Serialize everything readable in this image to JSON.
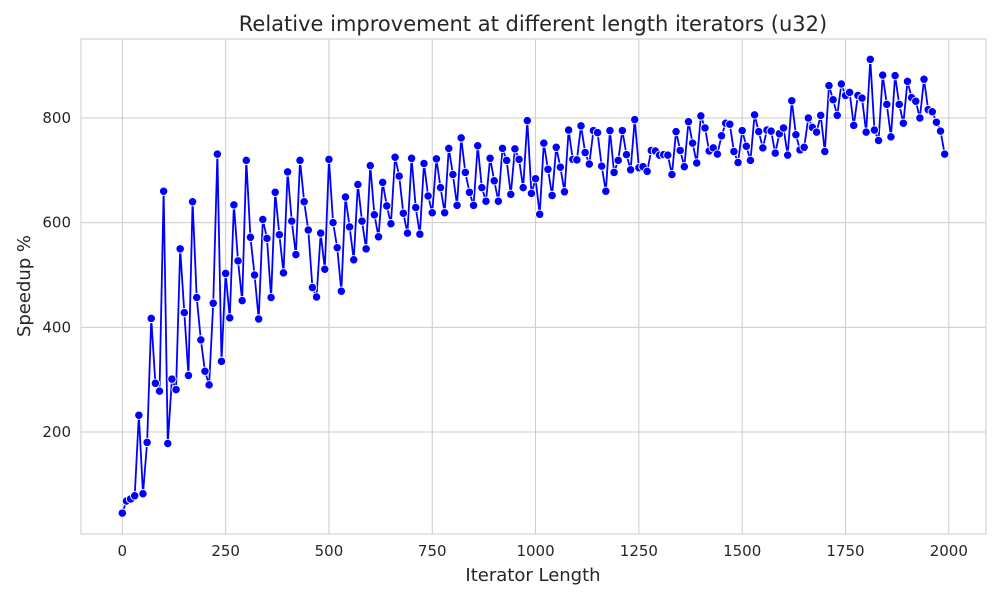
{
  "chart_data": {
    "type": "line",
    "title": "Relative improvement at different length iterators (u32)",
    "xlabel": "Iterator Length",
    "ylabel": "Speedup %",
    "xlim": [
      -100,
      2090
    ],
    "ylim": [
      5,
      951
    ],
    "xticks": [
      0,
      250,
      500,
      750,
      1000,
      1250,
      1500,
      1750,
      2000
    ],
    "yticks": [
      200,
      400,
      600,
      800
    ],
    "grid": true,
    "background": "#ffffff",
    "grid_color": "#cccccc",
    "series": [
      {
        "color": "#0000ff",
        "marker": "circle",
        "x": [
          0,
          10,
          20,
          30,
          40,
          50,
          60,
          70,
          80,
          90,
          100,
          110,
          120,
          130,
          140,
          150,
          160,
          170,
          180,
          190,
          200,
          210,
          220,
          230,
          240,
          250,
          260,
          270,
          280,
          290,
          300,
          310,
          320,
          330,
          340,
          350,
          360,
          370,
          380,
          390,
          400,
          410,
          420,
          430,
          440,
          450,
          460,
          470,
          480,
          490,
          500,
          510,
          520,
          530,
          540,
          550,
          560,
          570,
          580,
          590,
          600,
          610,
          620,
          630,
          640,
          650,
          660,
          670,
          680,
          690,
          700,
          710,
          720,
          730,
          740,
          750,
          760,
          770,
          780,
          790,
          800,
          810,
          820,
          830,
          840,
          850,
          860,
          870,
          880,
          890,
          900,
          910,
          920,
          930,
          940,
          950,
          960,
          970,
          980,
          990,
          1000,
          1010,
          1020,
          1030,
          1040,
          1050,
          1060,
          1070,
          1080,
          1090,
          1100,
          1110,
          1120,
          1130,
          1140,
          1150,
          1160,
          1170,
          1180,
          1190,
          1200,
          1210,
          1220,
          1230,
          1240,
          1250,
          1260,
          1270,
          1280,
          1290,
          1300,
          1310,
          1320,
          1330,
          1340,
          1350,
          1360,
          1370,
          1380,
          1390,
          1400,
          1410,
          1420,
          1430,
          1440,
          1450,
          1460,
          1470,
          1480,
          1490,
          1500,
          1510,
          1520,
          1530,
          1540,
          1550,
          1560,
          1570,
          1580,
          1590,
          1600,
          1610,
          1620,
          1630,
          1640,
          1650,
          1660,
          1670,
          1680,
          1690,
          1700,
          1710,
          1720,
          1730,
          1740,
          1750,
          1760,
          1770,
          1780,
          1790,
          1800,
          1810,
          1820,
          1830,
          1840,
          1850,
          1860,
          1870,
          1880,
          1890,
          1900,
          1910,
          1920,
          1930,
          1940,
          1950,
          1960,
          1970,
          1980,
          1990
        ],
        "y": [
          45,
          68,
          72,
          78,
          232,
          82,
          180,
          417,
          293,
          278,
          660,
          178,
          301,
          281,
          550,
          428,
          308,
          640,
          457,
          376,
          316,
          290,
          446,
          731,
          335,
          503,
          418,
          634,
          527,
          451,
          719,
          572,
          500,
          416,
          606,
          570,
          457,
          658,
          577,
          504,
          697,
          603,
          539,
          719,
          640,
          586,
          476,
          458,
          580,
          511,
          721,
          600,
          552,
          469,
          649,
          592,
          529,
          673,
          603,
          550,
          709,
          615,
          573,
          677,
          632,
          598,
          725,
          689,
          618,
          580,
          723,
          629,
          578,
          713,
          651,
          619,
          722,
          667,
          619,
          742,
          692,
          633,
          762,
          696,
          658,
          633,
          747,
          667,
          641,
          723,
          680,
          641,
          742,
          719,
          654,
          741,
          721,
          667,
          795,
          656,
          684,
          616,
          752,
          702,
          652,
          744,
          706,
          659,
          777,
          721,
          720,
          785,
          734,
          712,
          776,
          772,
          708,
          660,
          776,
          696,
          719,
          776,
          730,
          701,
          797,
          705,
          707,
          698,
          738,
          737,
          729,
          730,
          729,
          692,
          774,
          738,
          707,
          793,
          752,
          714,
          804,
          781,
          737,
          743,
          731,
          766,
          790,
          788,
          736,
          715,
          776,
          746,
          719,
          806,
          774,
          743,
          777,
          775,
          733,
          770,
          781,
          729,
          833,
          768,
          739,
          744,
          800,
          782,
          773,
          805,
          736,
          862,
          835,
          805,
          865,
          843,
          849,
          786,
          843,
          838,
          773,
          912,
          777,
          757,
          882,
          826,
          764,
          881,
          826,
          790,
          870,
          839,
          832,
          800,
          874,
          816,
          812,
          792,
          775,
          731
        ]
      }
    ]
  }
}
